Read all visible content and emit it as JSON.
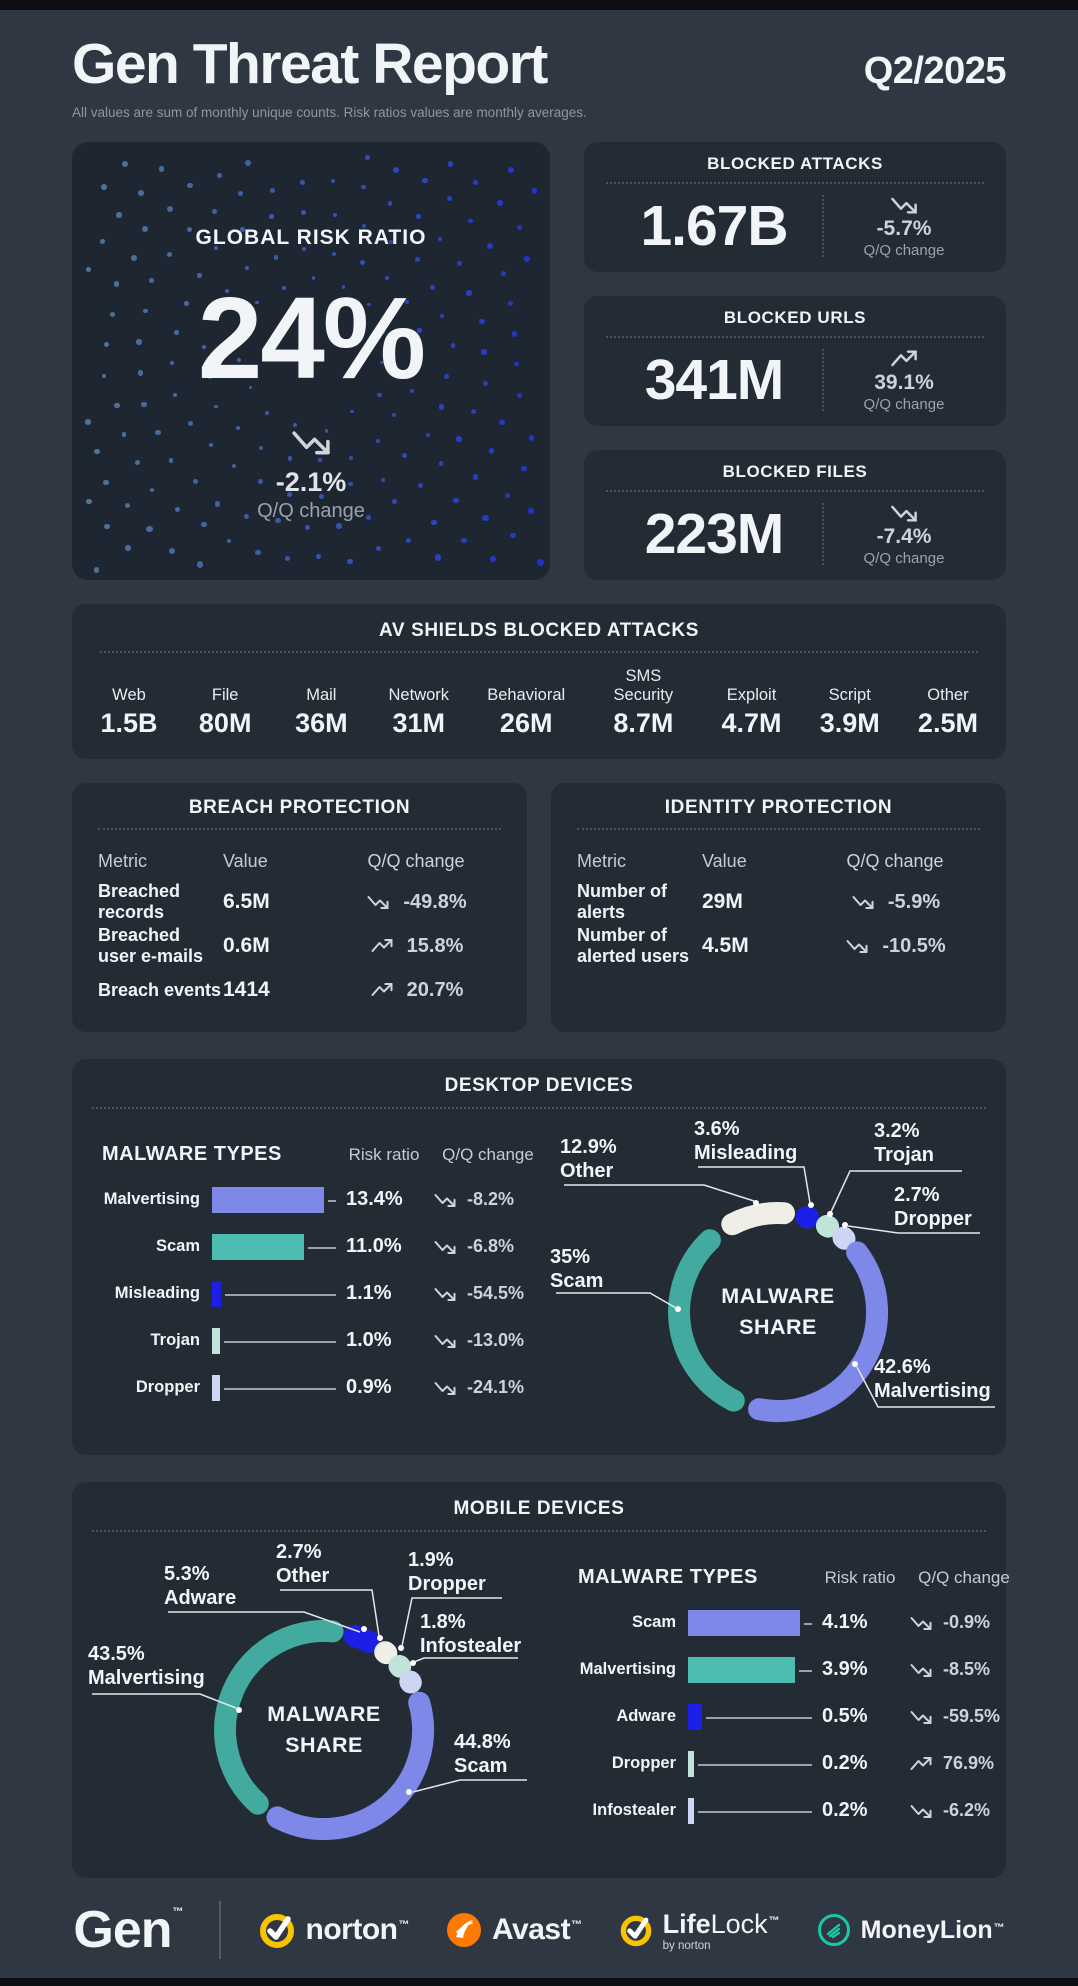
{
  "header": {
    "title": "Gen Threat Report",
    "quarter": "Q2/2025",
    "subtitle": "All values are sum of monthly unique counts. Risk ratios values are monthly averages.",
    "tm": "™"
  },
  "risk_card": {
    "title": "GLOBAL RISK RATIO",
    "value": "24%",
    "change": "-2.1%",
    "change_label": "Q/Q change",
    "trend": "down"
  },
  "stat_cards": [
    {
      "title": "BLOCKED ATTACKS",
      "value": "1.67B",
      "change": "-5.7%",
      "change_label": "Q/Q change",
      "trend": "down"
    },
    {
      "title": "BLOCKED URLS",
      "value": "341M",
      "change": "39.1%",
      "change_label": "Q/Q change",
      "trend": "up"
    },
    {
      "title": "BLOCKED FILES",
      "value": "223M",
      "change": "-7.4%",
      "change_label": "Q/Q change",
      "trend": "down"
    }
  ],
  "av_shields": {
    "title": "AV SHIELDS BLOCKED ATTACKS",
    "items": [
      {
        "label": "Web",
        "value": "1.5B"
      },
      {
        "label": "File",
        "value": "80M"
      },
      {
        "label": "Mail",
        "value": "36M"
      },
      {
        "label": "Network",
        "value": "31M"
      },
      {
        "label": "Behavioral",
        "value": "26M"
      },
      {
        "label": "SMS Security",
        "value": "8.7M"
      },
      {
        "label": "Exploit",
        "value": "4.7M"
      },
      {
        "label": "Script",
        "value": "3.9M"
      },
      {
        "label": "Other",
        "value": "2.5M"
      }
    ]
  },
  "protection_tables": [
    {
      "title": "BREACH PROTECTION",
      "columns": [
        "Metric",
        "Value",
        "Q/Q change"
      ],
      "rows": [
        {
          "metric": "Breached records",
          "value": "6.5M",
          "change": "-49.8%",
          "trend": "down"
        },
        {
          "metric": "Breached user e-mails",
          "value": "0.6M",
          "change": "15.8%",
          "trend": "up"
        },
        {
          "metric": "Breach events",
          "value": "1414",
          "change": "20.7%",
          "trend": "up"
        }
      ]
    },
    {
      "title": "IDENTITY PROTECTION",
      "columns": [
        "Metric",
        "Value",
        "Q/Q change"
      ],
      "rows": [
        {
          "metric": "Number of alerts",
          "value": "29M",
          "change": "-5.9%",
          "trend": "down"
        },
        {
          "metric": "Number of alerted users",
          "value": "4.5M",
          "change": "-10.5%",
          "trend": "down"
        }
      ]
    }
  ],
  "sections": {
    "desktop_title": "DESKTOP DEVICES",
    "mobile_title": "MOBILE DEVICES"
  },
  "chart_data": [
    {
      "id": "desktop_bars",
      "type": "bar",
      "title": "MALWARE TYPES",
      "col_risk": "Risk ratio",
      "col_change": "Q/Q change",
      "unit": "%",
      "categories": [
        "Malvertising",
        "Scam",
        "Misleading",
        "Trojan",
        "Dropper"
      ],
      "values": [
        13.4,
        11.0,
        1.1,
        1.0,
        0.9
      ],
      "value_labels": [
        "13.4%",
        "11.0%",
        "1.1%",
        "1.0%",
        "0.9%"
      ],
      "changes": [
        "-8.2%",
        "-6.8%",
        "-54.5%",
        "-13.0%",
        "-24.1%"
      ],
      "trends": [
        "down",
        "down",
        "down",
        "down",
        "down"
      ],
      "colors": [
        "#7e88e8",
        "#4cbcb0",
        "#1b1fe8",
        "#c0e3da",
        "#ccd5f3"
      ]
    },
    {
      "id": "desktop_donut",
      "type": "donut",
      "center_label": "MALWARE SHARE",
      "segments": [
        {
          "label": "Misleading",
          "share": 3.6,
          "display": "3.6%",
          "color": "#1b1fe8"
        },
        {
          "label": "Trojan",
          "share": 3.2,
          "display": "3.2%",
          "color": "#c0e3da"
        },
        {
          "label": "Dropper",
          "share": 2.7,
          "display": "2.7%",
          "color": "#ccd5f3"
        },
        {
          "label": "Malvertising",
          "share": 42.6,
          "display": "42.6%",
          "color": "#7e88e8"
        },
        {
          "label": "Scam",
          "share": 35,
          "display": "35%",
          "color": "#43aa9f"
        },
        {
          "label": "Other",
          "share": 12.9,
          "display": "12.9%",
          "color": "#efeee7"
        }
      ]
    },
    {
      "id": "mobile_donut",
      "type": "donut",
      "center_label": "MALWARE SHARE",
      "segments": [
        {
          "label": "Adware",
          "share": 5.3,
          "display": "5.3%",
          "color": "#1b1fe8"
        },
        {
          "label": "Other",
          "share": 2.7,
          "display": "2.7%",
          "color": "#efeee7"
        },
        {
          "label": "Dropper",
          "share": 1.9,
          "display": "1.9%",
          "color": "#c0e3da"
        },
        {
          "label": "Infostealer",
          "share": 1.8,
          "display": "1.8%",
          "color": "#ccd5f3"
        },
        {
          "label": "Scam",
          "share": 44.8,
          "display": "44.8%",
          "color": "#7e88e8"
        },
        {
          "label": "Malvertising",
          "share": 43.5,
          "display": "43.5%",
          "color": "#43aa9f"
        }
      ]
    },
    {
      "id": "mobile_bars",
      "type": "bar",
      "title": "MALWARE TYPES",
      "col_risk": "Risk ratio",
      "col_change": "Q/Q change",
      "unit": "%",
      "categories": [
        "Scam",
        "Malvertising",
        "Adware",
        "Dropper",
        "Infostealer"
      ],
      "values": [
        4.1,
        3.9,
        0.5,
        0.2,
        0.2
      ],
      "value_labels": [
        "4.1%",
        "3.9%",
        "0.5%",
        "0.2%",
        "0.2%"
      ],
      "changes": [
        "-0.9%",
        "-8.5%",
        "-59.5%",
        "76.9%",
        "-6.2%"
      ],
      "trends": [
        "down",
        "down",
        "down",
        "up",
        "down"
      ],
      "colors": [
        "#7e88e8",
        "#4cbcb0",
        "#1b1fe8",
        "#c0e3da",
        "#ccd5f3"
      ]
    }
  ],
  "footer": {
    "gen": "Gen",
    "norton": "norton",
    "avast": "Avast",
    "lifelock_life": "Life",
    "lifelock_lock": "Lock",
    "lifelock_by": "by norton",
    "moneylion": "MoneyLion",
    "colors": {
      "yellow": "#f6c500",
      "orange": "#ff7a00",
      "teal": "#1ac8a5",
      "white": "#ffffff"
    }
  }
}
